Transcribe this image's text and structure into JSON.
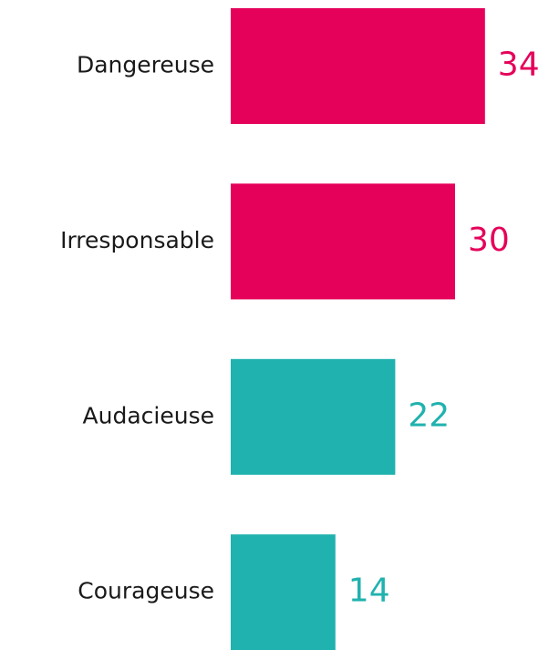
{
  "chart_data": {
    "type": "bar",
    "orientation": "horizontal",
    "categories": [
      "Dangereuse",
      "Irresponsable",
      "Audacieuse",
      "Courageuse"
    ],
    "values": [
      34,
      30,
      22,
      14
    ],
    "colors": [
      "#e5005a",
      "#e5005a",
      "#20b2ae",
      "#20b2ae"
    ]
  }
}
